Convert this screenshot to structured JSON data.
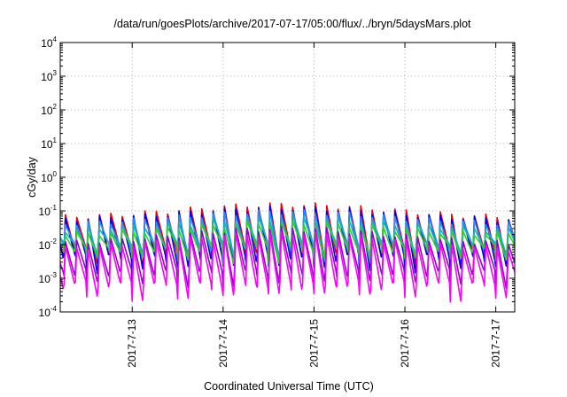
{
  "chart_data": {
    "type": "line",
    "title": "/data/run/goesPlots/archive/2017-07-17/05:00/flux/../bryn/5daysMars.plot",
    "xlabel": "Coordinated Universal Time (UTC)",
    "ylabel": "cGy/day",
    "yscale": "log",
    "ylim": [
      0.0001,
      10000
    ],
    "y_ticks": [
      {
        "base": "10",
        "exp": "-4"
      },
      {
        "base": "10",
        "exp": "-3"
      },
      {
        "base": "10",
        "exp": "-2"
      },
      {
        "base": "10",
        "exp": "-1"
      },
      {
        "base": "10",
        "exp": "0"
      },
      {
        "base": "10",
        "exp": "1"
      },
      {
        "base": "10",
        "exp": "2"
      },
      {
        "base": "10",
        "exp": "3"
      },
      {
        "base": "10",
        "exp": "4"
      }
    ],
    "xlim": [
      "2017-07-12T05:00",
      "2017-07-17T05:00"
    ],
    "x_ticks": [
      "2017-7-13",
      "2017-7-14",
      "2017-7-15",
      "2017-7-16",
      "2017-7-17"
    ],
    "x_tick_values": [
      "2017-07-13T00:00",
      "2017-07-14T00:00",
      "2017-07-15T00:00",
      "2017-07-16T00:00",
      "2017-07-17T00:00"
    ],
    "grid": true,
    "sawtooth_period_hours": 3,
    "series": [
      {
        "color": "#e8000b",
        "peak_max": 0.18,
        "peak_min": 0.07,
        "trough": 0.006
      },
      {
        "color": "#0000ee",
        "peak_max": 0.14,
        "peak_min": 0.06,
        "trough": 0.004
      },
      {
        "color": "#1e90ff",
        "peak_max": 0.11,
        "peak_min": 0.045,
        "trough": 0.008
      },
      {
        "color": "#20b2aa",
        "peak_max": 0.07,
        "peak_min": 0.03,
        "trough": 0.009
      },
      {
        "color": "#32cd32",
        "peak_max": 0.05,
        "peak_min": 0.022,
        "trough": 0.007
      },
      {
        "color": "#9400d3",
        "peak_max": 0.035,
        "peak_min": 0.012,
        "trough": 0.0014
      },
      {
        "color": "#ff00ff",
        "peak_max": 0.025,
        "peak_min": 0.008,
        "trough": 0.0006
      }
    ]
  }
}
